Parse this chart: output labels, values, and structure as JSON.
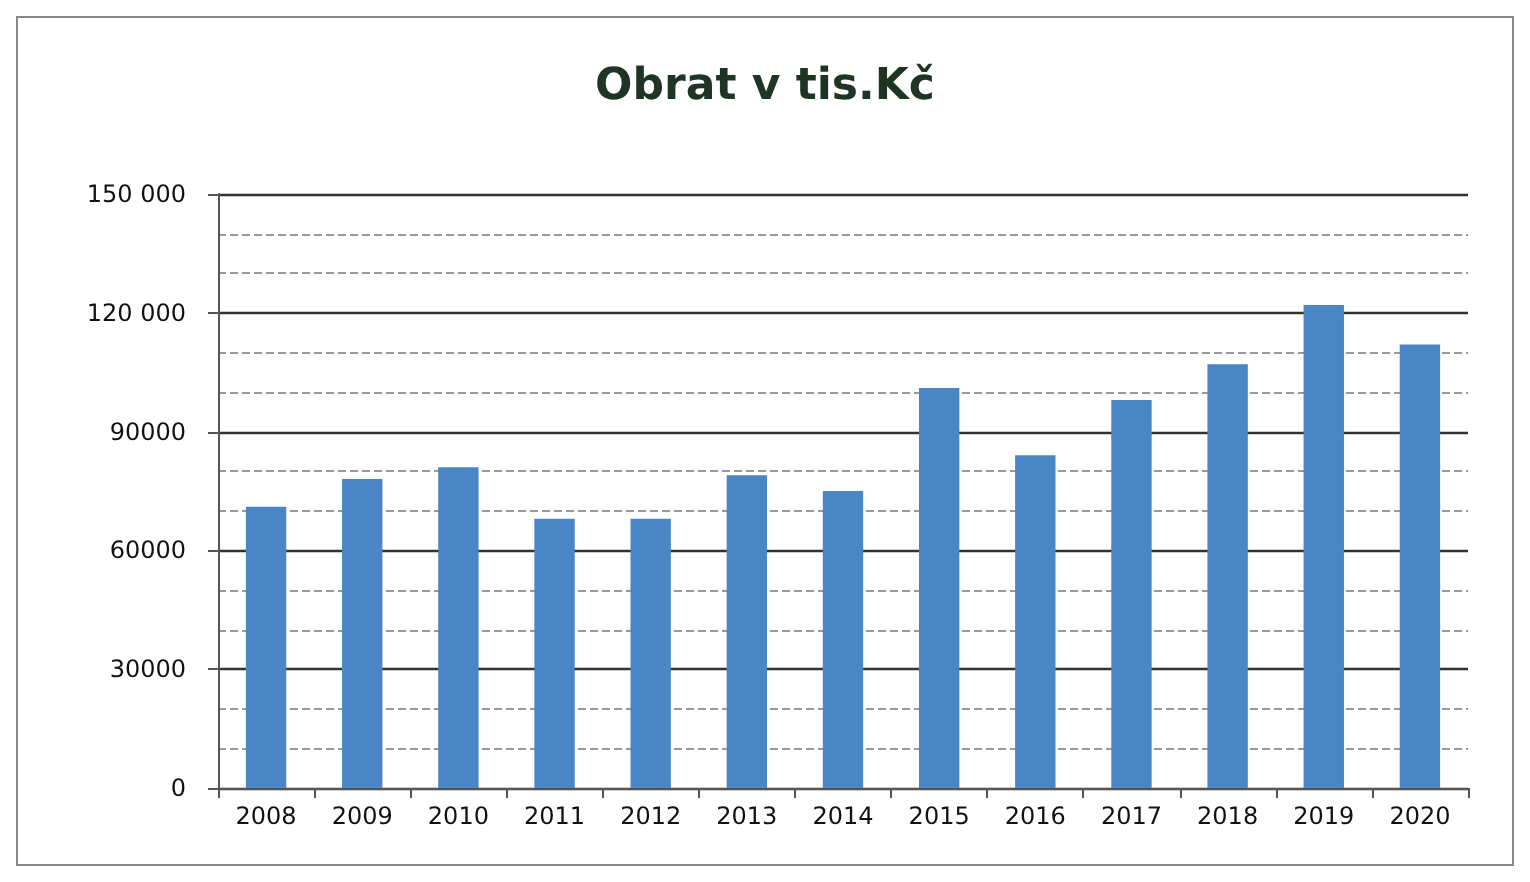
{
  "chart_data": {
    "type": "bar",
    "title": "Obrat v tis.Kč",
    "categories": [
      "2008",
      "2009",
      "2010",
      "2011",
      "2012",
      "2013",
      "2014",
      "2015",
      "2016",
      "2017",
      "2018",
      "2019",
      "2020"
    ],
    "values": [
      71000,
      78000,
      81000,
      68000,
      68000,
      79000,
      75000,
      101000,
      84000,
      98000,
      107000,
      122000,
      112000
    ],
    "color": "#4a86c5",
    "ylim": [
      0,
      150000
    ],
    "yticks": [
      {
        "value": 0,
        "label": "0"
      },
      {
        "value": 30000,
        "label": "30000"
      },
      {
        "value": 60000,
        "label": "60000"
      },
      {
        "value": 90000,
        "label": "90000"
      },
      {
        "value": 120000,
        "label": "120 000"
      },
      {
        "value": 150000,
        "label": "150 000"
      }
    ],
    "grid": true
  }
}
